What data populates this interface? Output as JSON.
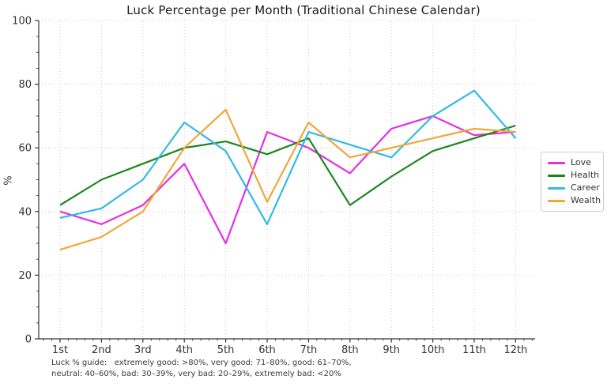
{
  "title": "Luck Percentage per Month (Traditional Chinese Calendar)",
  "footnote": {
    "line1": "Luck % guide:   extremely good: >80%, very good: 71–80%, good: 61–70%,",
    "line2": "neutral: 40–60%, bad: 30–39%, very bad: 20–29%, extremely bad: <20%"
  },
  "chart_data": {
    "type": "line",
    "title": "Luck Percentage per Month (Traditional Chinese Calendar)",
    "categories": [
      "1st",
      "2nd",
      "3rd",
      "4th",
      "5th",
      "6th",
      "7th",
      "8th",
      "9th",
      "10th",
      "11th",
      "12th"
    ],
    "series": [
      {
        "name": "Love",
        "color": "#e62ee6",
        "values": [
          40,
          36,
          42,
          55,
          30,
          65,
          60,
          52,
          66,
          70,
          64,
          65
        ]
      },
      {
        "name": "Health",
        "color": "#1d851d",
        "values": [
          42,
          50,
          55,
          60,
          62,
          58,
          63,
          42,
          51,
          59,
          63,
          67
        ]
      },
      {
        "name": "Career",
        "color": "#32b9e6",
        "values": [
          38,
          41,
          50,
          68,
          59,
          36,
          65,
          61,
          57,
          70,
          78,
          63
        ]
      },
      {
        "name": "Wealth",
        "color": "#f0a736",
        "values": [
          28,
          32,
          40,
          60,
          72,
          43,
          68,
          57,
          60,
          63,
          66,
          65
        ]
      }
    ],
    "xlabel": "",
    "ylabel": "%",
    "ylim": [
      0,
      100
    ],
    "yticks": [
      0,
      20,
      40,
      60,
      80,
      100
    ],
    "grid": true,
    "grid_style": "dotted",
    "legend_position": "right"
  },
  "colors": {
    "grid": "#c9c9c9",
    "axis": "#333333",
    "tick_text": "#333333",
    "title_text": "#1a1a1a",
    "background": "#ffffff"
  }
}
